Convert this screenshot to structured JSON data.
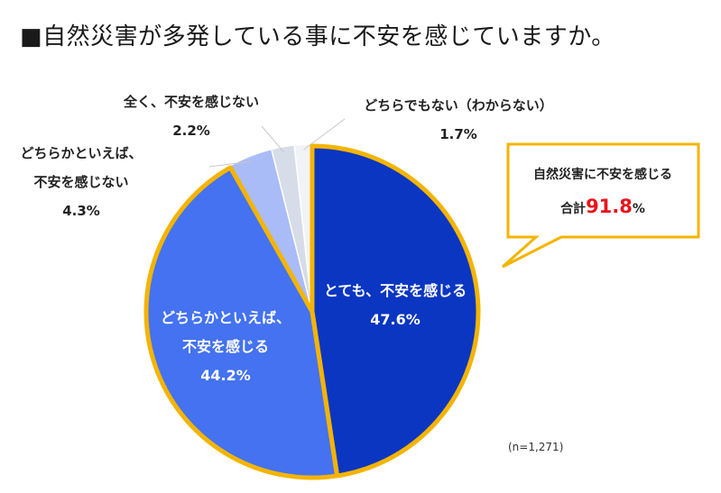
{
  "chart_data": {
    "type": "pie",
    "title": "■自然災害が多発している事に不安を感じていますか。",
    "slices": [
      {
        "label_lines": [
          "とても、不安を感じる"
        ],
        "value": 47.6,
        "value_label": "47.6%",
        "color": "#0a36c2",
        "highlight": true
      },
      {
        "label_lines": [
          "どちらかといえば、",
          "不安を感じる"
        ],
        "value": 44.2,
        "value_label": "44.2%",
        "color": "#4472f0",
        "highlight": true
      },
      {
        "label_lines": [
          "どちらかといえば、",
          "不安を感じない"
        ],
        "value": 4.3,
        "value_label": "4.3%",
        "color": "#a9bcf8",
        "highlight": false
      },
      {
        "label_lines": [
          "全く、不安を感じない"
        ],
        "value": 2.2,
        "value_label": "2.2%",
        "color": "#d6dce8",
        "highlight": false
      },
      {
        "label_lines": [
          "どちらでもない（わからない）"
        ],
        "value": 1.7,
        "value_label": "1.7%",
        "color": "#f1f3f7",
        "highlight": false
      }
    ],
    "highlight_color": "#f4b400",
    "callout": {
      "line1": "自然災害に不安を感じる",
      "prefix": "合計",
      "value": "91.8",
      "suffix": "%"
    },
    "note": "(n=1,271)"
  }
}
